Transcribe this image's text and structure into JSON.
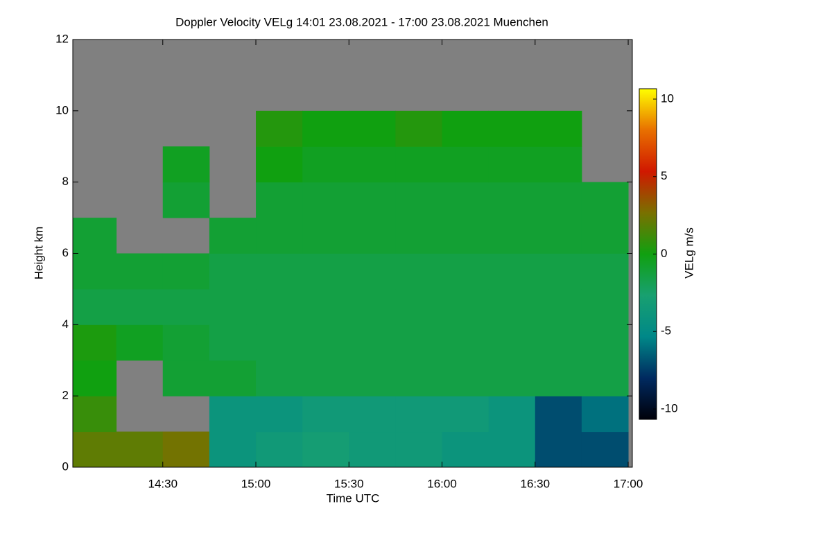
{
  "chart_data": {
    "type": "heatmap",
    "title": "Doppler Velocity VELg   14:01 23.08.2021 - 17:00 23.08.2021 Muenchen",
    "xlabel": "Time UTC",
    "ylabel": "Height km",
    "colorbar_label": "VELg m/s",
    "x": [
      14.125,
      14.375,
      14.625,
      14.875,
      15.125,
      15.375,
      15.625,
      15.875,
      16.125,
      16.375,
      16.625,
      16.875
    ],
    "y": [
      0.5,
      1.5,
      2.5,
      3.5,
      4.5,
      5.5,
      6.5,
      7.5,
      8.5,
      9.5,
      10.5,
      11.5
    ],
    "z": [
      [
        2,
        2,
        2.5,
        -4,
        -3.5,
        -3,
        -3.5,
        -3.5,
        -4,
        -4,
        -7,
        -7
      ],
      [
        1,
        null,
        null,
        -4,
        -4,
        -3.5,
        -3.5,
        -3.5,
        -3.5,
        -4,
        -7,
        -6
      ],
      [
        0,
        null,
        -1,
        -1,
        -1.5,
        -1.5,
        -1.5,
        -1.5,
        -1.5,
        -1.5,
        -1.5,
        -1.5
      ],
      [
        0.3,
        -0.5,
        -1,
        -1.5,
        -1.5,
        -1.5,
        -1.5,
        -1.5,
        -1.5,
        -1.5,
        -1.5,
        -1.5
      ],
      [
        -1.5,
        -1.5,
        -1.5,
        -1.5,
        -1.5,
        -1.5,
        -1.5,
        -1.5,
        -1.5,
        -1.5,
        -1.5,
        -1.5
      ],
      [
        -1,
        -1,
        -1,
        -1.5,
        -1.5,
        -1.5,
        -1.5,
        -1.5,
        -1.5,
        -1.5,
        -1.5,
        -1.5
      ],
      [
        -1,
        null,
        null,
        -1,
        -1,
        -1,
        -1,
        -1,
        -1,
        -1,
        -1,
        -1
      ],
      [
        null,
        null,
        -1,
        null,
        -1,
        -1,
        -1,
        -1,
        -1,
        -1,
        -1,
        -1
      ],
      [
        null,
        null,
        -0.5,
        null,
        0,
        -0.5,
        -0.5,
        -0.5,
        -0.5,
        -0.5,
        -0.5,
        null
      ],
      [
        null,
        null,
        null,
        null,
        0.5,
        0,
        0,
        0.5,
        0,
        0,
        0,
        null
      ],
      [
        null,
        null,
        null,
        null,
        null,
        null,
        null,
        null,
        null,
        null,
        null,
        null
      ],
      [
        null,
        null,
        null,
        null,
        null,
        null,
        null,
        null,
        null,
        null,
        null,
        null
      ]
    ],
    "xlim": [
      14.0167,
      17.0222
    ],
    "ylim": [
      0,
      12
    ],
    "zlim": [
      -10.67,
      10.67
    ],
    "xticks": [
      {
        "value": 14.5,
        "label": "14:30"
      },
      {
        "value": 15,
        "label": "15:00"
      },
      {
        "value": 15.5,
        "label": "15:30"
      },
      {
        "value": 16,
        "label": "16:00"
      },
      {
        "value": 16.5,
        "label": "16:30"
      },
      {
        "value": 17,
        "label": "17:00"
      }
    ],
    "yticks": [
      0,
      2,
      4,
      6,
      8,
      10,
      12
    ],
    "zticks": [
      -10,
      -5,
      0,
      5,
      10
    ],
    "colormap": [
      "#00000a",
      "#002a60",
      "#008888",
      "#18a070",
      "#10a010",
      "#7a7000",
      "#d01800",
      "#e87000",
      "#ffff00"
    ],
    "missing_color": "#808080"
  }
}
